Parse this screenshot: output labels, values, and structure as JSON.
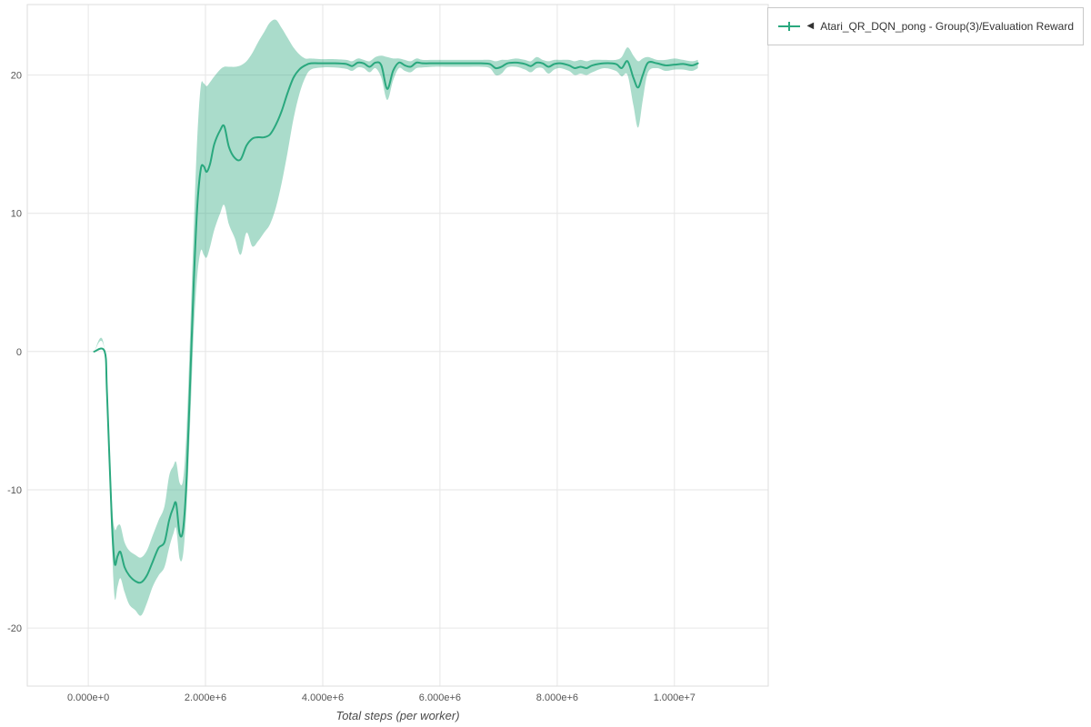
{
  "chart_data": {
    "type": "line",
    "title": "",
    "xlabel": "Total steps (per worker)",
    "ylabel": "",
    "xlim": [
      -1040000,
      11600000
    ],
    "ylim": [
      -24.2,
      25.1
    ],
    "grid": true,
    "x_ticks": [
      {
        "value": 0,
        "label": "0.000e+0"
      },
      {
        "value": 2000000,
        "label": "2.000e+6"
      },
      {
        "value": 4000000,
        "label": "4.000e+6"
      },
      {
        "value": 6000000,
        "label": "6.000e+6"
      },
      {
        "value": 8000000,
        "label": "8.000e+6"
      },
      {
        "value": 10000000,
        "label": "1.000e+7"
      }
    ],
    "y_ticks": [
      {
        "value": -20,
        "label": "-20"
      },
      {
        "value": -10,
        "label": "-10"
      },
      {
        "value": 0,
        "label": "0"
      },
      {
        "value": 10,
        "label": "10"
      },
      {
        "value": 20,
        "label": "20"
      }
    ],
    "colors": {
      "line": "#2aa87e",
      "band": "#2aa87e",
      "band_opacity": 0.4,
      "grid": "#e6e6e6",
      "border": "#dedede",
      "tick_text": "#555555"
    },
    "legend": {
      "position": "top-right",
      "collapse_icon": "◀",
      "entries": [
        {
          "label": "Atari_QR_DQN_pong - Group(3)/Evaluation Reward",
          "color": "#2aa87e"
        }
      ]
    },
    "series": [
      {
        "name": "Atari_QR_DQN_pong - Group(3)/Evaluation Reward",
        "color": "#2aa87e",
        "points": [
          [
            100000.0,
            0
          ],
          [
            280000.0,
            0
          ],
          [
            320000.0,
            -3
          ],
          [
            400000.0,
            -12
          ],
          [
            450000.0,
            -15.3
          ],
          [
            500000.0,
            -14.8
          ],
          [
            550000.0,
            -14.5
          ],
          [
            620000.0,
            -15.6
          ],
          [
            700000.0,
            -16.2
          ],
          [
            800000.0,
            -16.6
          ],
          [
            900000.0,
            -16.7
          ],
          [
            1000000.0,
            -16.2
          ],
          [
            1100000.0,
            -15.2
          ],
          [
            1200000.0,
            -14.2
          ],
          [
            1300000.0,
            -13.8
          ],
          [
            1380000.0,
            -12.2
          ],
          [
            1450000.0,
            -11.3
          ],
          [
            1500000.0,
            -11.0
          ],
          [
            1560000.0,
            -13.2
          ],
          [
            1620000.0,
            -12.8
          ],
          [
            1680000.0,
            -9.0
          ],
          [
            1740000.0,
            -2.0
          ],
          [
            1800000.0,
            5.0
          ],
          [
            1860000.0,
            10.5
          ],
          [
            1920000.0,
            13.2
          ],
          [
            1970000.0,
            13.4
          ],
          [
            2020000.0,
            13.0
          ],
          [
            2080000.0,
            13.6
          ],
          [
            2150000.0,
            15.0
          ],
          [
            2250000.0,
            16.0
          ],
          [
            2320000.0,
            16.3
          ],
          [
            2400000.0,
            14.8
          ],
          [
            2500000.0,
            14.0
          ],
          [
            2600000.0,
            13.9
          ],
          [
            2700000.0,
            14.9
          ],
          [
            2800000.0,
            15.4
          ],
          [
            2900000.0,
            15.5
          ],
          [
            3000000.0,
            15.5
          ],
          [
            3100000.0,
            15.7
          ],
          [
            3200000.0,
            16.4
          ],
          [
            3300000.0,
            17.4
          ],
          [
            3400000.0,
            18.7
          ],
          [
            3500000.0,
            19.8
          ],
          [
            3600000.0,
            20.4
          ],
          [
            3700000.0,
            20.7
          ],
          [
            3800000.0,
            20.85
          ],
          [
            4000000.0,
            20.85
          ],
          [
            4200000.0,
            20.85
          ],
          [
            4400000.0,
            20.8
          ],
          [
            4500000.0,
            20.65
          ],
          [
            4600000.0,
            20.9
          ],
          [
            4700000.0,
            20.85
          ],
          [
            4800000.0,
            20.6
          ],
          [
            4900000.0,
            20.9
          ],
          [
            5000000.0,
            20.7
          ],
          [
            5100000.0,
            19.0
          ],
          [
            5200000.0,
            20.3
          ],
          [
            5300000.0,
            20.9
          ],
          [
            5400000.0,
            20.7
          ],
          [
            5500000.0,
            20.6
          ],
          [
            5600000.0,
            20.9
          ],
          [
            5700000.0,
            20.85
          ],
          [
            5900000.0,
            20.85
          ],
          [
            6100000.0,
            20.85
          ],
          [
            6300000.0,
            20.85
          ],
          [
            6500000.0,
            20.85
          ],
          [
            6700000.0,
            20.85
          ],
          [
            6850000.0,
            20.8
          ],
          [
            6950000.0,
            20.5
          ],
          [
            7050000.0,
            20.6
          ],
          [
            7150000.0,
            20.85
          ],
          [
            7300000.0,
            20.9
          ],
          [
            7450000.0,
            20.8
          ],
          [
            7550000.0,
            20.65
          ],
          [
            7650000.0,
            20.9
          ],
          [
            7750000.0,
            20.85
          ],
          [
            7850000.0,
            20.6
          ],
          [
            7950000.0,
            20.8
          ],
          [
            8050000.0,
            20.85
          ],
          [
            8200000.0,
            20.7
          ],
          [
            8300000.0,
            20.5
          ],
          [
            8400000.0,
            20.6
          ],
          [
            8500000.0,
            20.5
          ],
          [
            8600000.0,
            20.7
          ],
          [
            8800000.0,
            20.85
          ],
          [
            9000000.0,
            20.8
          ],
          [
            9100000.0,
            20.5
          ],
          [
            9200000.0,
            21.0
          ],
          [
            9300000.0,
            19.8
          ],
          [
            9380000.0,
            19.1
          ],
          [
            9460000.0,
            20.0
          ],
          [
            9550000.0,
            20.9
          ],
          [
            9700000.0,
            20.85
          ],
          [
            9850000.0,
            20.7
          ],
          [
            10000000.0,
            20.75
          ],
          [
            10150000.0,
            20.8
          ],
          [
            10300000.0,
            20.7
          ],
          [
            10400000.0,
            20.85
          ]
        ],
        "band": [
          [
            100000.0,
            0,
            0
          ],
          [
            280000.0,
            0,
            0
          ],
          [
            400000.0,
            -13.5,
            -10.5
          ],
          [
            450000.0,
            -17.8,
            -12.8
          ],
          [
            500000.0,
            -17.0,
            -12.6
          ],
          [
            550000.0,
            -16.4,
            -12.6
          ],
          [
            620000.0,
            -17.4,
            -13.8
          ],
          [
            700000.0,
            -18.3,
            -14.4
          ],
          [
            800000.0,
            -18.7,
            -14.7
          ],
          [
            900000.0,
            -19.1,
            -14.9
          ],
          [
            1000000.0,
            -18.2,
            -14.4
          ],
          [
            1100000.0,
            -17.0,
            -13.3
          ],
          [
            1200000.0,
            -16.2,
            -12.2
          ],
          [
            1300000.0,
            -15.6,
            -11.2
          ],
          [
            1380000.0,
            -14.2,
            -9.0
          ],
          [
            1450000.0,
            -13.2,
            -8.3
          ],
          [
            1500000.0,
            -12.8,
            -8.0
          ],
          [
            1560000.0,
            -15.0,
            -9.5
          ],
          [
            1620000.0,
            -14.6,
            -9.2
          ],
          [
            1680000.0,
            -11.0,
            -5.5
          ],
          [
            1740000.0,
            -5.0,
            1.5
          ],
          [
            1800000.0,
            1.5,
            9.0
          ],
          [
            1860000.0,
            5.5,
            15.5
          ],
          [
            1920000.0,
            7.3,
            19.2
          ],
          [
            1970000.0,
            7.0,
            19.4
          ],
          [
            2020000.0,
            6.8,
            19.2
          ],
          [
            2080000.0,
            7.6,
            19.5
          ],
          [
            2150000.0,
            8.8,
            19.9
          ],
          [
            2250000.0,
            10.0,
            20.4
          ],
          [
            2320000.0,
            10.6,
            20.6
          ],
          [
            2400000.0,
            9.2,
            20.6
          ],
          [
            2500000.0,
            8.2,
            20.6
          ],
          [
            2600000.0,
            7.0,
            20.7
          ],
          [
            2700000.0,
            8.6,
            21.0
          ],
          [
            2800000.0,
            7.6,
            21.6
          ],
          [
            2900000.0,
            8.0,
            22.4
          ],
          [
            3000000.0,
            8.6,
            23.1
          ],
          [
            3100000.0,
            9.2,
            23.8
          ],
          [
            3200000.0,
            10.4,
            24.0
          ],
          [
            3300000.0,
            12.2,
            23.4
          ],
          [
            3400000.0,
            14.4,
            22.7
          ],
          [
            3500000.0,
            16.8,
            22.0
          ],
          [
            3600000.0,
            18.6,
            21.5
          ],
          [
            3700000.0,
            19.8,
            21.2
          ],
          [
            3800000.0,
            20.4,
            21.2
          ],
          [
            4000000.0,
            20.55,
            21.15
          ],
          [
            4200000.0,
            20.55,
            21.15
          ],
          [
            4400000.0,
            20.45,
            21.1
          ],
          [
            4500000.0,
            20.3,
            21.0
          ],
          [
            4600000.0,
            20.55,
            21.2
          ],
          [
            4700000.0,
            20.5,
            21.1
          ],
          [
            4800000.0,
            20.2,
            21.0
          ],
          [
            4900000.0,
            20.5,
            21.3
          ],
          [
            5000000.0,
            19.8,
            21.4
          ],
          [
            5100000.0,
            18.2,
            21.3
          ],
          [
            5200000.0,
            19.6,
            21.2
          ],
          [
            5300000.0,
            20.5,
            21.2
          ],
          [
            5400000.0,
            20.3,
            21.1
          ],
          [
            5500000.0,
            20.2,
            21.0
          ],
          [
            5600000.0,
            20.5,
            21.2
          ],
          [
            5700000.0,
            20.55,
            21.1
          ],
          [
            5900000.0,
            20.6,
            21.1
          ],
          [
            6100000.0,
            20.6,
            21.1
          ],
          [
            6300000.0,
            20.6,
            21.1
          ],
          [
            6500000.0,
            20.6,
            21.1
          ],
          [
            6700000.0,
            20.6,
            21.1
          ],
          [
            6850000.0,
            20.5,
            21.1
          ],
          [
            6950000.0,
            20.0,
            21.0
          ],
          [
            7050000.0,
            20.1,
            21.1
          ],
          [
            7150000.0,
            20.55,
            21.1
          ],
          [
            7300000.0,
            20.6,
            21.2
          ],
          [
            7450000.0,
            20.4,
            21.1
          ],
          [
            7550000.0,
            20.2,
            21.0
          ],
          [
            7650000.0,
            20.5,
            21.3
          ],
          [
            7750000.0,
            20.5,
            21.1
          ],
          [
            7850000.0,
            20.1,
            21.0
          ],
          [
            7950000.0,
            20.4,
            21.1
          ],
          [
            8050000.0,
            20.5,
            21.1
          ],
          [
            8200000.0,
            20.3,
            21.1
          ],
          [
            8300000.0,
            20.0,
            21.0
          ],
          [
            8400000.0,
            20.1,
            21.1
          ],
          [
            8500000.0,
            20.0,
            21.0
          ],
          [
            8600000.0,
            20.2,
            21.1
          ],
          [
            8800000.0,
            20.5,
            21.1
          ],
          [
            9000000.0,
            20.3,
            21.1
          ],
          [
            9100000.0,
            19.9,
            21.3
          ],
          [
            9200000.0,
            20.0,
            22.0
          ],
          [
            9300000.0,
            17.8,
            21.4
          ],
          [
            9380000.0,
            16.2,
            21.0
          ],
          [
            9460000.0,
            18.2,
            21.2
          ],
          [
            9550000.0,
            20.2,
            21.3
          ],
          [
            9700000.0,
            20.5,
            21.1
          ],
          [
            9850000.0,
            20.3,
            21.1
          ],
          [
            10000000.0,
            20.4,
            21.2
          ],
          [
            10150000.0,
            20.4,
            21.1
          ],
          [
            10300000.0,
            20.3,
            21.0
          ],
          [
            10400000.0,
            20.5,
            21.1
          ]
        ]
      }
    ]
  }
}
